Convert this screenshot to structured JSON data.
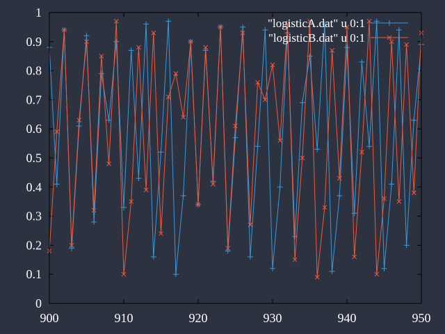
{
  "colors": {
    "background": "#2d3240",
    "axis": "#000000",
    "text": "#ffffff"
  },
  "chart_data": {
    "type": "line",
    "title": "",
    "xlabel": "",
    "ylabel": "",
    "xlim": [
      900,
      950
    ],
    "ylim": [
      0,
      1
    ],
    "x_ticks": [
      "900",
      "910",
      "920",
      "930",
      "940",
      "950"
    ],
    "y_ticks": [
      "0",
      "0.1",
      "0.2",
      "0.3",
      "0.4",
      "0.5",
      "0.6",
      "0.7",
      "0.8",
      "0.9",
      "1"
    ],
    "grid": false,
    "legend_position": "top-right",
    "series": [
      {
        "name": "\"logisticA.dat\" u 0:1",
        "color": "#3a9bdc",
        "marker": "plus",
        "x": [
          900,
          901,
          902,
          903,
          904,
          905,
          906,
          907,
          908,
          909,
          910,
          911,
          912,
          913,
          914,
          915,
          916,
          917,
          918,
          919,
          920,
          921,
          922,
          923,
          924,
          925,
          926,
          927,
          928,
          929,
          930,
          931,
          932,
          933,
          934,
          935,
          936,
          937,
          938,
          939,
          940,
          941,
          942,
          943,
          944,
          945,
          946,
          947,
          948,
          949,
          950
        ],
        "values": [
          0.88,
          0.41,
          0.94,
          0.19,
          0.61,
          0.92,
          0.28,
          0.79,
          0.63,
          0.9,
          0.33,
          0.87,
          0.43,
          0.96,
          0.16,
          0.52,
          0.97,
          0.1,
          0.37,
          0.9,
          0.34,
          0.87,
          0.42,
          0.95,
          0.18,
          0.57,
          0.95,
          0.16,
          0.54,
          0.94,
          0.12,
          0.4,
          0.93,
          0.23,
          0.69,
          0.85,
          0.53,
          0.96,
          0.11,
          0.37,
          0.88,
          0.31,
          0.83,
          0.54,
          0.97,
          0.12,
          0.41,
          0.94,
          0.2,
          0.63,
          0.89
        ]
      },
      {
        "name": "\"logisticB.dat\" u 0:1",
        "color": "#f05a3c",
        "marker": "cross",
        "x": [
          900,
          901,
          902,
          903,
          904,
          905,
          906,
          907,
          908,
          909,
          910,
          911,
          912,
          913,
          914,
          915,
          916,
          917,
          918,
          919,
          920,
          921,
          922,
          923,
          924,
          925,
          926,
          927,
          928,
          929,
          930,
          931,
          932,
          933,
          934,
          935,
          936,
          937,
          938,
          939,
          940,
          941,
          942,
          943,
          944,
          945,
          946,
          947,
          948,
          949,
          950
        ],
        "values": [
          0.18,
          0.59,
          0.94,
          0.2,
          0.63,
          0.9,
          0.32,
          0.85,
          0.48,
          0.97,
          0.1,
          0.35,
          0.88,
          0.39,
          0.93,
          0.24,
          0.71,
          0.79,
          0.64,
          0.9,
          0.34,
          0.88,
          0.41,
          0.95,
          0.19,
          0.61,
          0.93,
          0.27,
          0.76,
          0.7,
          0.82,
          0.56,
          0.96,
          0.15,
          0.5,
          0.97,
          0.09,
          0.33,
          0.87,
          0.43,
          0.95,
          0.16,
          0.52,
          0.97,
          0.1,
          0.36,
          0.9,
          0.35,
          0.89,
          0.38,
          0.93
        ]
      }
    ]
  }
}
